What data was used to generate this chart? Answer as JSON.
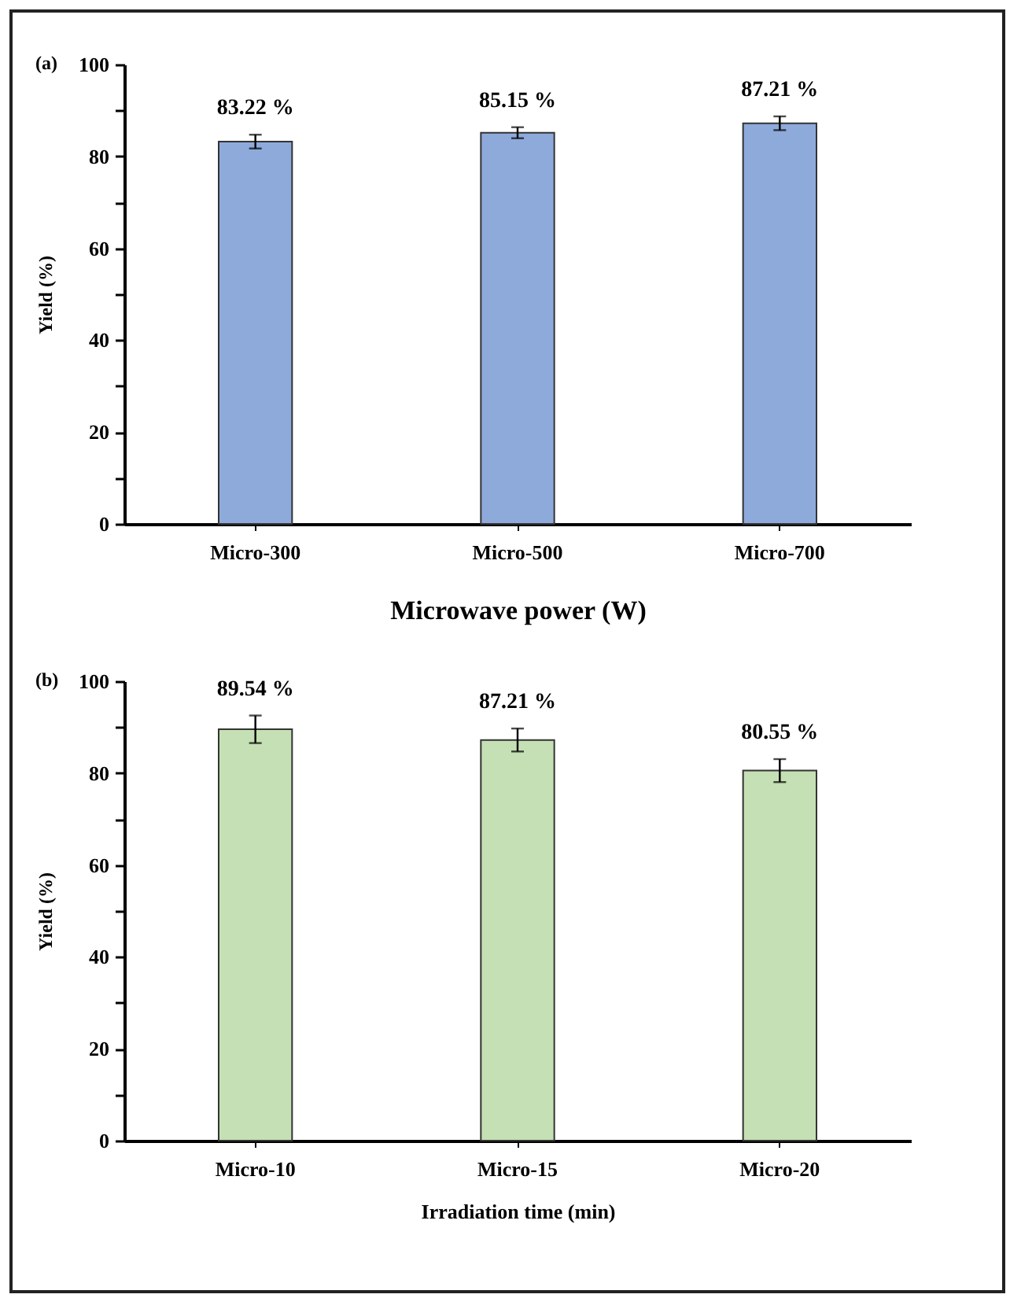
{
  "chart_data": [
    {
      "type": "bar",
      "title": "(a)",
      "xlabel": "Microwave power (W)",
      "ylabel": "Yield (%)",
      "categories": [
        "Micro-300",
        "Micro-500",
        "Micro-700"
      ],
      "series": [
        {
          "color": "#8eaadb",
          "values": [
            83.22,
            85.15,
            87.21
          ],
          "errors": [
            1.5,
            1.2,
            1.5
          ],
          "value_labels": [
            "83.22 %",
            "85.15 %",
            "87.21 %"
          ]
        }
      ],
      "ylim": [
        0,
        100
      ],
      "yticks": [
        0,
        {
          "value": 10,
          "label": null
        },
        20,
        {
          "value": 30,
          "label": null
        },
        40,
        {
          "value": 50,
          "label": null
        },
        60,
        {
          "value": 70,
          "label": null
        },
        80,
        {
          "value": 90,
          "label": null
        },
        100
      ],
      "grid": false
    },
    {
      "type": "bar",
      "title": "(b)",
      "xlabel": "Irradiation  time (min)",
      "ylabel": "Yield (%)",
      "categories": [
        "Micro-10",
        "Micro-15",
        "Micro-20"
      ],
      "series": [
        {
          "color": "#c5e0b4",
          "values": [
            89.54,
            87.21,
            80.55
          ],
          "errors": [
            3,
            2.5,
            2.5
          ],
          "value_labels": [
            "89.54 %",
            "87.21 %",
            "80.55 %"
          ]
        }
      ],
      "ylim": [
        0,
        100
      ],
      "yticks": [
        0,
        {
          "value": 10,
          "label": null
        },
        20,
        {
          "value": 30,
          "label": null
        },
        40,
        {
          "value": 50,
          "label": null
        },
        60,
        {
          "value": 70,
          "label": null
        },
        80,
        {
          "value": 90,
          "label": null
        },
        100
      ],
      "grid": false
    }
  ]
}
